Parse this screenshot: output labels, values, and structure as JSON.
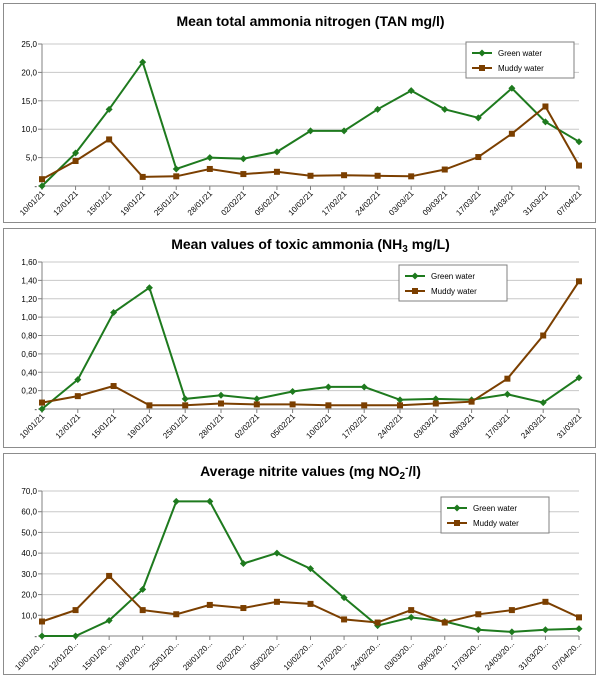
{
  "chart_data": [
    {
      "type": "line",
      "title_parts": [
        "Mean total ammonia nitrogen (TAN mg/l)"
      ],
      "yticks": [
        "-",
        "5,0",
        "10,0",
        "15,0",
        "20,0",
        "25,0"
      ],
      "ylim": [
        0,
        25
      ],
      "x": [
        "10/01/21",
        "12/01/21",
        "15/01/21",
        "19/01/21",
        "25/01/21",
        "28/01/21",
        "02/02/21",
        "05/02/21",
        "10/02/21",
        "17/02/21",
        "24/02/21",
        "03/03/21",
        "09/03/21",
        "17/03/21",
        "24/03/21",
        "31/03/21",
        "07/04/21"
      ],
      "series": [
        {
          "name": "Green water",
          "color": "#1e7a1e",
          "marker": "diamond",
          "values": [
            0.0,
            5.8,
            13.5,
            21.8,
            3.0,
            5.0,
            4.8,
            6.0,
            9.7,
            9.7,
            13.5,
            16.8,
            13.5,
            12.0,
            17.2,
            11.3,
            7.8
          ]
        },
        {
          "name": "Muddy water",
          "color": "#7b3f00",
          "marker": "square",
          "values": [
            1.2,
            4.4,
            8.2,
            1.6,
            1.7,
            3.0,
            2.1,
            2.5,
            1.8,
            1.9,
            1.8,
            1.7,
            2.9,
            5.1,
            9.2,
            14.0,
            3.6
          ]
        }
      ],
      "legend": "top-right"
    },
    {
      "type": "line",
      "title_parts": [
        "Mean values of toxic ammonia (NH",
        "3",
        " mg/L)"
      ],
      "yticks": [
        "-",
        "0,20",
        "0,40",
        "0,60",
        "0,80",
        "1,00",
        "1,20",
        "1,40",
        "1,60"
      ],
      "ylim": [
        0,
        1.6
      ],
      "x": [
        "10/01/21",
        "12/01/21",
        "15/01/21",
        "19/01/21",
        "25/01/21",
        "28/01/21",
        "02/02/21",
        "05/02/21",
        "10/02/21",
        "17/02/21",
        "24/02/21",
        "03/03/21",
        "09/03/21",
        "17/03/21",
        "24/03/21",
        "31/03/21"
      ],
      "series": [
        {
          "name": "Green water",
          "color": "#1e7a1e",
          "marker": "diamond",
          "values": [
            0.0,
            0.32,
            1.05,
            1.32,
            0.11,
            0.15,
            0.11,
            0.19,
            0.24,
            0.24,
            0.1,
            0.11,
            0.1,
            0.16,
            0.07,
            0.34
          ]
        },
        {
          "name": "Muddy water",
          "color": "#7b3f00",
          "marker": "square",
          "values": [
            0.07,
            0.14,
            0.25,
            0.04,
            0.04,
            0.06,
            0.05,
            0.05,
            0.04,
            0.04,
            0.04,
            0.06,
            0.08,
            0.33,
            0.8,
            1.39
          ]
        }
      ],
      "legend": "top-right"
    },
    {
      "type": "line",
      "title_parts": [
        "Average nitrite values (mg NO",
        "2",
        "-",
        "/l)"
      ],
      "yticks": [
        "-",
        "10,0",
        "20,0",
        "30,0",
        "40,0",
        "50,0",
        "60,0",
        "70,0"
      ],
      "ylim": [
        0,
        70
      ],
      "x": [
        "10/01/20...",
        "12/01/20...",
        "15/01/20...",
        "19/01/20...",
        "25/01/20...",
        "28/01/20...",
        "02/02/20...",
        "05/02/20...",
        "10/02/20...",
        "17/02/20...",
        "24/02/20...",
        "03/03/20...",
        "09/03/20...",
        "17/03/20...",
        "24/03/20...",
        "31/03/20...",
        "07/04/20..."
      ],
      "series": [
        {
          "name": "Green water",
          "color": "#1e7a1e",
          "marker": "diamond",
          "values": [
            0.0,
            0.0,
            7.5,
            22.5,
            65.0,
            65.0,
            35.0,
            40.0,
            32.5,
            18.5,
            5.0,
            9.0,
            7.0,
            3.0,
            2.0,
            3.0,
            3.5
          ]
        },
        {
          "name": "Muddy water",
          "color": "#7b3f00",
          "marker": "square",
          "values": [
            7.0,
            12.5,
            29.0,
            12.5,
            10.5,
            15.0,
            13.5,
            16.5,
            15.5,
            8.0,
            6.5,
            12.5,
            6.5,
            10.5,
            12.5,
            16.5,
            9.0
          ]
        }
      ],
      "legend": "top-right"
    }
  ]
}
